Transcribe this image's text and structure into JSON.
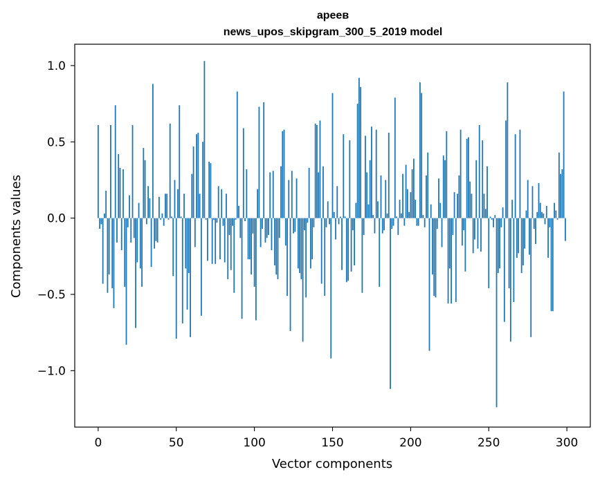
{
  "chart_data": {
    "type": "bar",
    "title_line1": "ареев",
    "title_line2": "news_upos_skipgram_300_5_2019 model",
    "xlabel": "Vector components",
    "ylabel": "Components values",
    "xlim": [
      -15,
      315
    ],
    "ylim": [
      -1.37,
      1.14
    ],
    "xticks": [
      0,
      50,
      100,
      150,
      200,
      250,
      300
    ],
    "yticks": [
      -1.0,
      -0.5,
      0.0,
      0.5,
      1.0
    ],
    "xtick_labels": [
      "0",
      "50",
      "100",
      "150",
      "200",
      "250",
      "300"
    ],
    "ytick_labels": [
      "−1.0",
      "−0.5",
      "0.0",
      "0.5",
      "1.0"
    ],
    "bar_color": "#1f77b4",
    "values": [
      0.61,
      -0.07,
      -0.04,
      -0.43,
      0.03,
      0.18,
      -0.49,
      -0.37,
      0.61,
      -0.46,
      -0.59,
      0.74,
      -0.16,
      0.42,
      0.33,
      -0.21,
      0.32,
      -0.45,
      -0.83,
      -0.06,
      0.15,
      -0.16,
      0.61,
      -0.13,
      -0.72,
      -0.29,
      0.1,
      -0.33,
      -0.45,
      0.46,
      0.38,
      -0.04,
      0.21,
      0.13,
      -0.32,
      0.88,
      -0.2,
      -0.15,
      -0.16,
      0.14,
      -0.01,
      0.03,
      -0.05,
      0.16,
      0.16,
      -0.01,
      0.62,
      0.01,
      -0.38,
      0.25,
      -0.79,
      0.19,
      0.74,
      0.01,
      -0.69,
      0.16,
      -0.33,
      -0.6,
      -0.36,
      -0.78,
      0.29,
      0.47,
      -0.19,
      0.55,
      0.56,
      0.16,
      -0.64,
      0.5,
      1.03,
      -0.01,
      -0.28,
      0.37,
      0.36,
      -0.3,
      -0.01,
      -0.3,
      -0.03,
      0.21,
      -0.27,
      0.19,
      -0.05,
      -0.29,
      0.16,
      -0.4,
      -0.11,
      -0.34,
      -0.05,
      -0.49,
      -0.01,
      0.83,
      0.08,
      -0.13,
      -0.66,
      0.59,
      -0.02,
      0.32,
      -0.27,
      -0.27,
      -0.37,
      -0.1,
      -0.45,
      -0.67,
      0.19,
      0.73,
      -0.19,
      -0.07,
      0.76,
      -0.16,
      -0.13,
      -0.11,
      0.3,
      -0.21,
      0.31,
      -0.31,
      -0.37,
      -0.4,
      -0.13,
      0.34,
      0.57,
      0.58,
      -0.18,
      -0.51,
      0.25,
      -0.74,
      0.31,
      -0.1,
      -0.09,
      0.26,
      -0.33,
      -0.36,
      -0.4,
      -0.81,
      -0.08,
      -0.52,
      -0.03,
      0.33,
      -0.33,
      -0.27,
      -0.06,
      0.62,
      0.61,
      0.3,
      0.64,
      -0.43,
      0.34,
      -0.51,
      -0.06,
      0.11,
      -0.04,
      -0.92,
      0.82,
      0.04,
      -0.14,
      0.21,
      -0.04,
      0.01,
      -0.34,
      0.55,
      0.01,
      -0.42,
      -0.41,
      0.51,
      -0.35,
      -0.08,
      -0.31,
      0.1,
      0.75,
      0.92,
      0.86,
      -0.49,
      -0.11,
      0.54,
      0.3,
      0.09,
      0.38,
      0.6,
      0.02,
      -0.1,
      0.58,
      0.11,
      -0.45,
      0.28,
      -0.1,
      -0.08,
      0.25,
      0.03,
      0.56,
      -1.12,
      -0.07,
      -0.05,
      0.79,
      0.01,
      -0.11,
      0.12,
      0.03,
      0.29,
      -0.05,
      0.35,
      0.19,
      0.04,
      0.17,
      0.32,
      0.39,
      0.12,
      -0.05,
      -0.05,
      0.89,
      0.82,
      0.02,
      -0.06,
      0.28,
      0.43,
      -0.87,
      0.09,
      -0.37,
      -0.51,
      -0.52,
      -0.07,
      0.26,
      0.1,
      -0.19,
      0.41,
      0.38,
      0.57,
      -0.56,
      -0.33,
      -0.56,
      -0.11,
      0.17,
      -0.55,
      0.16,
      0.28,
      0.58,
      -0.18,
      -0.08,
      -0.35,
      0.52,
      0.53,
      0.24,
      0.16,
      -0.23,
      -0.14,
      0.38,
      -0.2,
      0.61,
      -0.22,
      0.51,
      0.16,
      0.06,
      0.34,
      -0.46,
      0.01,
      -0.01,
      -0.06,
      0.02,
      -1.24,
      -0.36,
      -0.33,
      -0.06,
      0.07,
      -0.68,
      0.64,
      0.89,
      -0.46,
      -0.81,
      0.12,
      -0.55,
      0.55,
      -0.26,
      -0.23,
      0.58,
      -0.36,
      -0.31,
      -0.2,
      0.05,
      0.25,
      -0.24,
      -0.78,
      0.21,
      -0.07,
      -0.17,
      0.04,
      0.23,
      0.1,
      0.04,
      0.03,
      -0.04,
      0.08,
      -0.26,
      -0.06,
      -0.61,
      -0.61,
      0.1,
      0.05,
      -0.01,
      0.43,
      0.29,
      0.32,
      0.83,
      -0.15
    ]
  }
}
